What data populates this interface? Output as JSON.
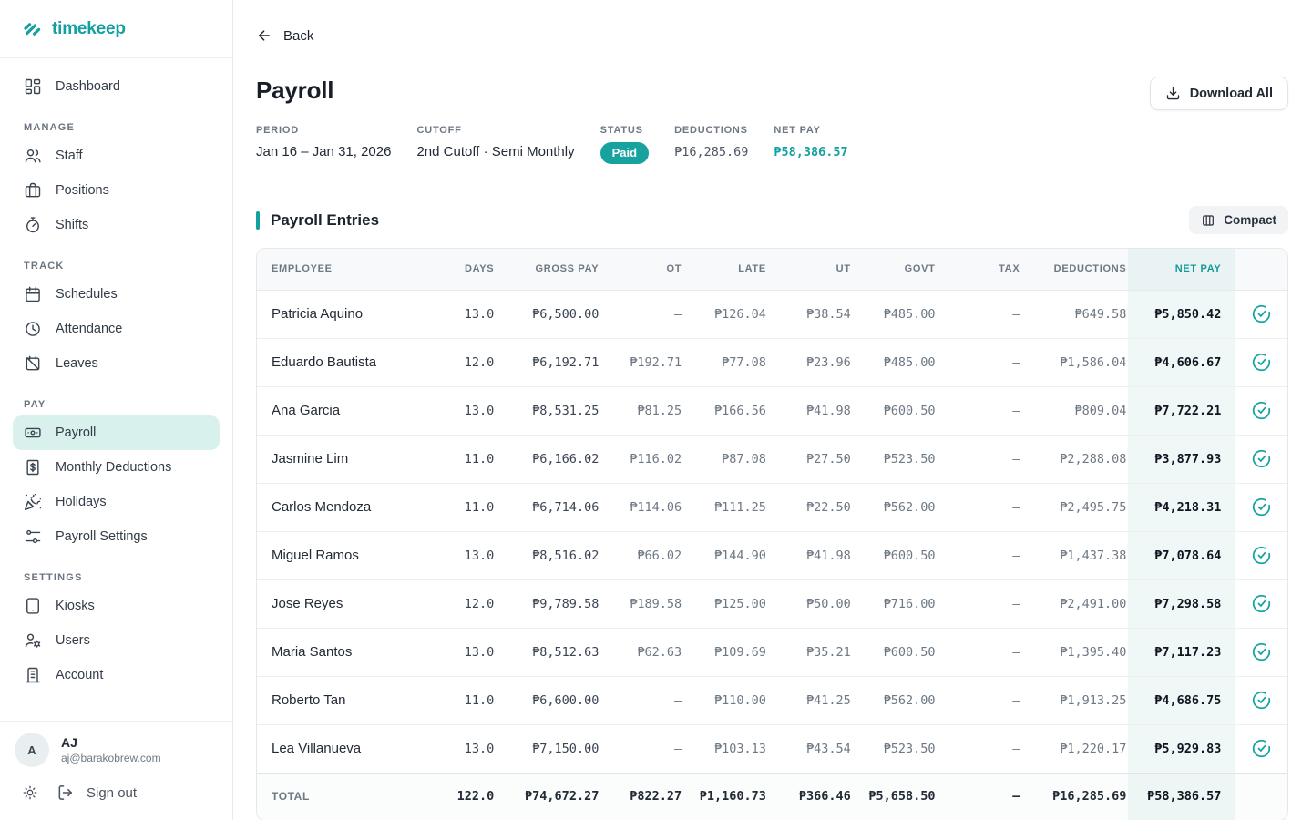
{
  "brand": {
    "name": "timekeep"
  },
  "colors": {
    "accent": "#14a0a0",
    "badge_bg": "#17a2a0",
    "active_item_bg": "#d9f1ed",
    "netpay_col_bg": "#f0f7f7"
  },
  "sidebar": {
    "sections": [
      {
        "label": "",
        "items": [
          {
            "label": "Dashboard",
            "icon": "dashboard-icon",
            "active": false
          }
        ]
      },
      {
        "label": "MANAGE",
        "items": [
          {
            "label": "Staff",
            "icon": "staff-icon",
            "active": false
          },
          {
            "label": "Positions",
            "icon": "positions-icon",
            "active": false
          },
          {
            "label": "Shifts",
            "icon": "shifts-icon",
            "active": false
          }
        ]
      },
      {
        "label": "TRACK",
        "items": [
          {
            "label": "Schedules",
            "icon": "schedules-icon",
            "active": false
          },
          {
            "label": "Attendance",
            "icon": "attendance-icon",
            "active": false
          },
          {
            "label": "Leaves",
            "icon": "leaves-icon",
            "active": false
          }
        ]
      },
      {
        "label": "PAY",
        "items": [
          {
            "label": "Payroll",
            "icon": "payroll-icon",
            "active": true
          },
          {
            "label": "Monthly Deductions",
            "icon": "deductions-icon",
            "active": false
          },
          {
            "label": "Holidays",
            "icon": "holidays-icon",
            "active": false
          },
          {
            "label": "Payroll Settings",
            "icon": "payroll-settings-icon",
            "active": false
          }
        ]
      },
      {
        "label": "SETTINGS",
        "items": [
          {
            "label": "Kiosks",
            "icon": "kiosks-icon",
            "active": false
          },
          {
            "label": "Users",
            "icon": "users-icon",
            "active": false
          },
          {
            "label": "Account",
            "icon": "account-icon",
            "active": false
          }
        ]
      }
    ],
    "user": {
      "initial": "A",
      "name": "AJ",
      "email": "aj@barakobrew.com"
    },
    "signout_label": "Sign out"
  },
  "header": {
    "back_label": "Back",
    "title": "Payroll",
    "download_label": "Download All",
    "meta": [
      {
        "label": "PERIOD",
        "value": "Jan 16 – Jan 31, 2026",
        "type": "text"
      },
      {
        "label": "CUTOFF",
        "value": "2nd Cutoff · Semi Monthly",
        "type": "text"
      },
      {
        "label": "STATUS",
        "value": "Paid",
        "type": "badge"
      },
      {
        "label": "DEDUCTIONS",
        "value": "₱16,285.69",
        "type": "mono"
      },
      {
        "label": "NET PAY",
        "value": "₱58,386.57",
        "type": "mono-accent"
      }
    ]
  },
  "entries": {
    "title": "Payroll Entries",
    "compact_label": "Compact",
    "columns": [
      "EMPLOYEE",
      "DAYS",
      "GROSS PAY",
      "OT",
      "LATE",
      "UT",
      "GOVT",
      "TAX",
      "DEDUCTIONS",
      "NET PAY"
    ],
    "rows": [
      [
        "Patricia Aquino",
        "13.0",
        "₱6,500.00",
        "—",
        "₱126.04",
        "₱38.54",
        "₱485.00",
        "—",
        "₱649.58",
        "₱5,850.42"
      ],
      [
        "Eduardo Bautista",
        "12.0",
        "₱6,192.71",
        "₱192.71",
        "₱77.08",
        "₱23.96",
        "₱485.00",
        "—",
        "₱1,586.04",
        "₱4,606.67"
      ],
      [
        "Ana Garcia",
        "13.0",
        "₱8,531.25",
        "₱81.25",
        "₱166.56",
        "₱41.98",
        "₱600.50",
        "—",
        "₱809.04",
        "₱7,722.21"
      ],
      [
        "Jasmine Lim",
        "11.0",
        "₱6,166.02",
        "₱116.02",
        "₱87.08",
        "₱27.50",
        "₱523.50",
        "—",
        "₱2,288.08",
        "₱3,877.93"
      ],
      [
        "Carlos Mendoza",
        "11.0",
        "₱6,714.06",
        "₱114.06",
        "₱111.25",
        "₱22.50",
        "₱562.00",
        "—",
        "₱2,495.75",
        "₱4,218.31"
      ],
      [
        "Miguel Ramos",
        "13.0",
        "₱8,516.02",
        "₱66.02",
        "₱144.90",
        "₱41.98",
        "₱600.50",
        "—",
        "₱1,437.38",
        "₱7,078.64"
      ],
      [
        "Jose Reyes",
        "12.0",
        "₱9,789.58",
        "₱189.58",
        "₱125.00",
        "₱50.00",
        "₱716.00",
        "—",
        "₱2,491.00",
        "₱7,298.58"
      ],
      [
        "Maria Santos",
        "13.0",
        "₱8,512.63",
        "₱62.63",
        "₱109.69",
        "₱35.21",
        "₱600.50",
        "—",
        "₱1,395.40",
        "₱7,117.23"
      ],
      [
        "Roberto Tan",
        "11.0",
        "₱6,600.00",
        "—",
        "₱110.00",
        "₱41.25",
        "₱562.00",
        "—",
        "₱1,913.25",
        "₱4,686.75"
      ],
      [
        "Lea Villanueva",
        "13.0",
        "₱7,150.00",
        "—",
        "₱103.13",
        "₱43.54",
        "₱523.50",
        "—",
        "₱1,220.17",
        "₱5,929.83"
      ]
    ],
    "total": [
      "TOTAL",
      "122.0",
      "₱74,672.27",
      "₱822.27",
      "₱1,160.73",
      "₱366.46",
      "₱5,658.50",
      "—",
      "₱16,285.69",
      "₱58,386.57"
    ]
  }
}
